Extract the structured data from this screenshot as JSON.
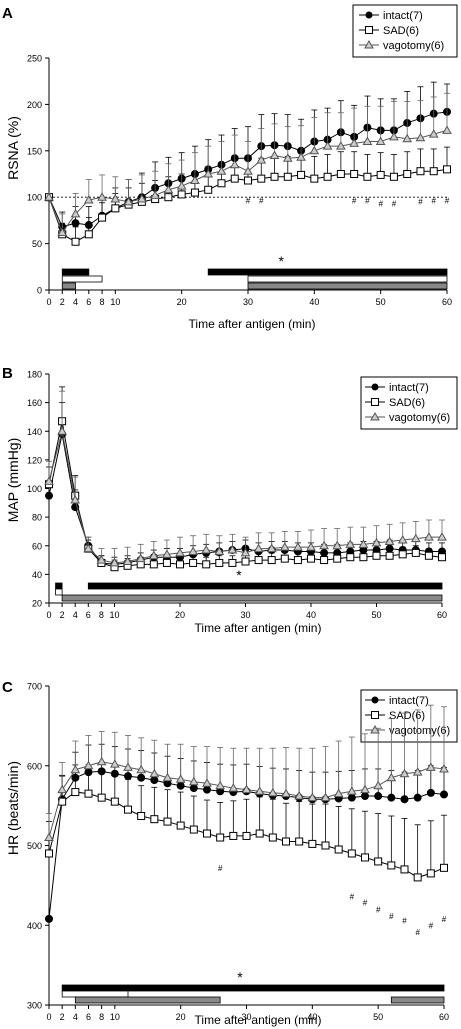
{
  "chart_data": [
    {
      "type": "line",
      "panel_label": "A",
      "ylabel": "RSNA (%)",
      "xlabel": "Time after antigen (min)",
      "ylim": [
        0,
        250
      ],
      "yticks": [
        0,
        50,
        100,
        150,
        200,
        250
      ],
      "xlim": [
        0,
        60
      ],
      "xticks": [
        0,
        2,
        4,
        6,
        8,
        10,
        20,
        30,
        40,
        50,
        60
      ],
      "reference_line": 100,
      "legend_position": "top-right",
      "x": [
        0,
        2,
        4,
        6,
        8,
        10,
        12,
        14,
        16,
        18,
        20,
        22,
        24,
        26,
        28,
        30,
        32,
        34,
        36,
        38,
        40,
        42,
        44,
        46,
        48,
        50,
        52,
        54,
        56,
        58,
        60
      ],
      "series": [
        {
          "name": "intact(7)",
          "marker": "filled-circle",
          "values": [
            100,
            68,
            72,
            70,
            80,
            88,
            95,
            100,
            110,
            115,
            120,
            125,
            130,
            135,
            142,
            142,
            155,
            156,
            155,
            150,
            160,
            162,
            170,
            165,
            175,
            172,
            172,
            180,
            185,
            190,
            192
          ],
          "errors": [
            0,
            16,
            18,
            20,
            20,
            22,
            24,
            26,
            28,
            28,
            28,
            30,
            32,
            32,
            32,
            34,
            34,
            34,
            34,
            34,
            34,
            34,
            34,
            34,
            34,
            34,
            34,
            34,
            34,
            34,
            30
          ]
        },
        {
          "name": "SAD(6)",
          "marker": "open-square",
          "values": [
            100,
            60,
            52,
            60,
            78,
            88,
            92,
            95,
            98,
            100,
            103,
            105,
            108,
            115,
            120,
            118,
            120,
            122,
            122,
            124,
            120,
            122,
            125,
            125,
            122,
            124,
            122,
            125,
            128,
            128,
            130
          ],
          "errors": [
            0,
            12,
            16,
            18,
            16,
            16,
            18,
            20,
            20,
            22,
            22,
            22,
            22,
            22,
            22,
            22,
            22,
            22,
            22,
            24,
            24,
            24,
            24,
            24,
            24,
            24,
            24,
            24,
            24,
            24,
            24
          ]
        },
        {
          "name": "vagotomy(6)",
          "marker": "open-triangle",
          "values": [
            100,
            62,
            82,
            97,
            100,
            98,
            95,
            98,
            102,
            108,
            112,
            118,
            125,
            128,
            135,
            128,
            140,
            145,
            142,
            143,
            150,
            155,
            155,
            158,
            160,
            160,
            165,
            163,
            164,
            168,
            172
          ],
          "errors": [
            0,
            20,
            22,
            22,
            24,
            24,
            24,
            26,
            26,
            28,
            28,
            30,
            30,
            32,
            32,
            32,
            34,
            34,
            34,
            34,
            36,
            36,
            36,
            38,
            38,
            38,
            38,
            40,
            40,
            40,
            40
          ]
        }
      ],
      "significance_marks": [
        {
          "x": 30,
          "y": 93
        },
        {
          "x": 32,
          "y": 93
        },
        {
          "x": 46,
          "y": 93
        },
        {
          "x": 48,
          "y": 93
        },
        {
          "x": 50,
          "y": 90
        },
        {
          "x": 52,
          "y": 90
        },
        {
          "x": 56,
          "y": 92
        },
        {
          "x": 58,
          "y": 93
        },
        {
          "x": 60,
          "y": 93
        }
      ],
      "significance_symbol": "#",
      "significance_bars": [
        {
          "style": "black",
          "start": 2,
          "end": 6
        },
        {
          "style": "black",
          "start": 24,
          "end": 60
        },
        {
          "style": "white",
          "start": 2,
          "end": 8
        },
        {
          "style": "white",
          "start": 30,
          "end": 60
        },
        {
          "style": "gray",
          "start": 2,
          "end": 4
        },
        {
          "style": "gray",
          "start": 30,
          "end": 60
        }
      ],
      "bar_star": "*",
      "bar_star_x": 35
    },
    {
      "type": "line",
      "panel_label": "B",
      "ylabel": "MAP (mmHg)",
      "xlabel": "Time after antigen (min)",
      "ylim": [
        20,
        180
      ],
      "yticks": [
        20,
        40,
        60,
        80,
        100,
        120,
        140,
        160,
        180
      ],
      "xlim": [
        0,
        60
      ],
      "xticks": [
        0,
        2,
        4,
        6,
        8,
        10,
        20,
        30,
        40,
        50,
        60
      ],
      "legend_position": "top-right",
      "x": [
        0,
        2,
        4,
        6,
        8,
        10,
        12,
        14,
        16,
        18,
        20,
        22,
        24,
        26,
        28,
        30,
        32,
        34,
        36,
        38,
        40,
        42,
        44,
        46,
        48,
        50,
        52,
        54,
        56,
        58,
        60
      ],
      "series": [
        {
          "name": "intact(7)",
          "marker": "filled-circle",
          "values": [
            95,
            138,
            87,
            60,
            48,
            47,
            48,
            50,
            52,
            52,
            52,
            54,
            55,
            56,
            57,
            58,
            56,
            57,
            57,
            56,
            56,
            55,
            55,
            56,
            57,
            57,
            58,
            57,
            57,
            56,
            56
          ],
          "errors": [
            10,
            22,
            12,
            6,
            5,
            5,
            5,
            5,
            5,
            6,
            6,
            6,
            6,
            6,
            6,
            6,
            6,
            6,
            6,
            6,
            6,
            6,
            6,
            6,
            6,
            6,
            6,
            6,
            6,
            6,
            6
          ]
        },
        {
          "name": "SAD(6)",
          "marker": "open-square",
          "values": [
            103,
            147,
            95,
            58,
            48,
            45,
            46,
            47,
            47,
            48,
            47,
            48,
            47,
            48,
            48,
            49,
            50,
            50,
            51,
            50,
            51,
            50,
            51,
            52,
            52,
            53,
            53,
            54,
            55,
            53,
            52
          ],
          "errors": [
            12,
            24,
            14,
            6,
            5,
            5,
            5,
            5,
            5,
            5,
            5,
            5,
            5,
            5,
            5,
            5,
            5,
            5,
            5,
            5,
            5,
            5,
            5,
            5,
            5,
            5,
            5,
            5,
            5,
            5,
            5
          ]
        },
        {
          "name": "vagotomy(6)",
          "marker": "open-triangle",
          "values": [
            105,
            140,
            92,
            58,
            50,
            48,
            49,
            51,
            53,
            54,
            55,
            56,
            57,
            56,
            57,
            55,
            58,
            58,
            59,
            59,
            59,
            60,
            60,
            61,
            61,
            62,
            63,
            64,
            65,
            66,
            66
          ],
          "errors": [
            14,
            28,
            16,
            8,
            8,
            10,
            10,
            10,
            10,
            10,
            11,
            11,
            11,
            11,
            11,
            11,
            11,
            11,
            11,
            11,
            12,
            12,
            12,
            12,
            12,
            12,
            12,
            12,
            12,
            12,
            12
          ]
        }
      ],
      "significance_marks": [],
      "significance_symbol": "#",
      "significance_bars": [
        {
          "style": "black",
          "start": 1,
          "end": 2
        },
        {
          "style": "black",
          "start": 6,
          "end": 60
        },
        {
          "style": "white",
          "start": 1,
          "end": 2
        },
        {
          "style": "gray",
          "start": 2,
          "end": 60
        }
      ],
      "bar_star": "*",
      "bar_star_x": 29
    },
    {
      "type": "line",
      "panel_label": "C",
      "ylabel": "HR (beats/min)",
      "xlabel": "Time after antigen (min)",
      "ylim": [
        300,
        700
      ],
      "yticks": [
        300,
        400,
        500,
        600,
        700
      ],
      "xlim": [
        0,
        60
      ],
      "xticks": [
        0,
        2,
        4,
        6,
        8,
        10,
        20,
        30,
        40,
        50,
        60
      ],
      "legend_position": "top-right",
      "x": [
        0,
        2,
        4,
        6,
        8,
        10,
        12,
        14,
        16,
        18,
        20,
        22,
        24,
        26,
        28,
        30,
        32,
        34,
        36,
        38,
        40,
        42,
        44,
        46,
        48,
        50,
        52,
        54,
        56,
        58,
        60
      ],
      "series": [
        {
          "name": "intact(7)",
          "marker": "filled-circle",
          "values": [
            408,
            558,
            585,
            592,
            593,
            590,
            587,
            585,
            582,
            578,
            575,
            572,
            570,
            568,
            567,
            568,
            565,
            563,
            562,
            560,
            558,
            558,
            559,
            560,
            562,
            562,
            560,
            558,
            560,
            566,
            564
          ],
          "errors": [
            0,
            30,
            32,
            34,
            34,
            34,
            34,
            34,
            34,
            34,
            34,
            34,
            34,
            34,
            34,
            34,
            34,
            34,
            34,
            34,
            34,
            34,
            34,
            34,
            34,
            34,
            34,
            34,
            34,
            34,
            34
          ]
        },
        {
          "name": "SAD(6)",
          "marker": "open-square",
          "values": [
            490,
            555,
            567,
            565,
            560,
            555,
            545,
            537,
            533,
            530,
            525,
            520,
            515,
            510,
            512,
            512,
            515,
            510,
            505,
            505,
            502,
            500,
            495,
            490,
            485,
            480,
            475,
            470,
            460,
            465,
            472
          ],
          "errors": [
            40,
            32,
            34,
            36,
            36,
            38,
            38,
            38,
            40,
            40,
            42,
            42,
            42,
            44,
            44,
            46,
            46,
            48,
            48,
            50,
            50,
            52,
            54,
            56,
            58,
            60,
            62,
            64,
            66,
            66,
            66
          ]
        },
        {
          "name": "vagotomy(6)",
          "marker": "open-triangle",
          "values": [
            510,
            570,
            595,
            600,
            605,
            602,
            598,
            595,
            590,
            585,
            583,
            580,
            578,
            575,
            572,
            570,
            568,
            566,
            565,
            562,
            560,
            560,
            565,
            568,
            570,
            575,
            585,
            590,
            592,
            598,
            596
          ],
          "errors": [
            30,
            34,
            36,
            38,
            38,
            40,
            40,
            40,
            42,
            42,
            44,
            44,
            46,
            48,
            50,
            52,
            54,
            56,
            58,
            60,
            62,
            64,
            66,
            68,
            70,
            72,
            74,
            76,
            78,
            78,
            78
          ]
        }
      ],
      "significance_marks": [
        {
          "x": 26,
          "y": 468
        },
        {
          "x": 46,
          "y": 432
        },
        {
          "x": 48,
          "y": 425
        },
        {
          "x": 50,
          "y": 416
        },
        {
          "x": 52,
          "y": 408
        },
        {
          "x": 54,
          "y": 402
        },
        {
          "x": 56,
          "y": 388
        },
        {
          "x": 58,
          "y": 396
        },
        {
          "x": 60,
          "y": 404
        }
      ],
      "significance_symbol": "#",
      "significance_bars": [
        {
          "style": "black",
          "start": 2,
          "end": 60
        },
        {
          "style": "white",
          "start": 2,
          "end": 12
        },
        {
          "style": "gray",
          "start": 4,
          "end": 26
        },
        {
          "style": "gray",
          "start": 52,
          "end": 60
        }
      ],
      "bar_star": "*",
      "bar_star_x": 29
    }
  ]
}
